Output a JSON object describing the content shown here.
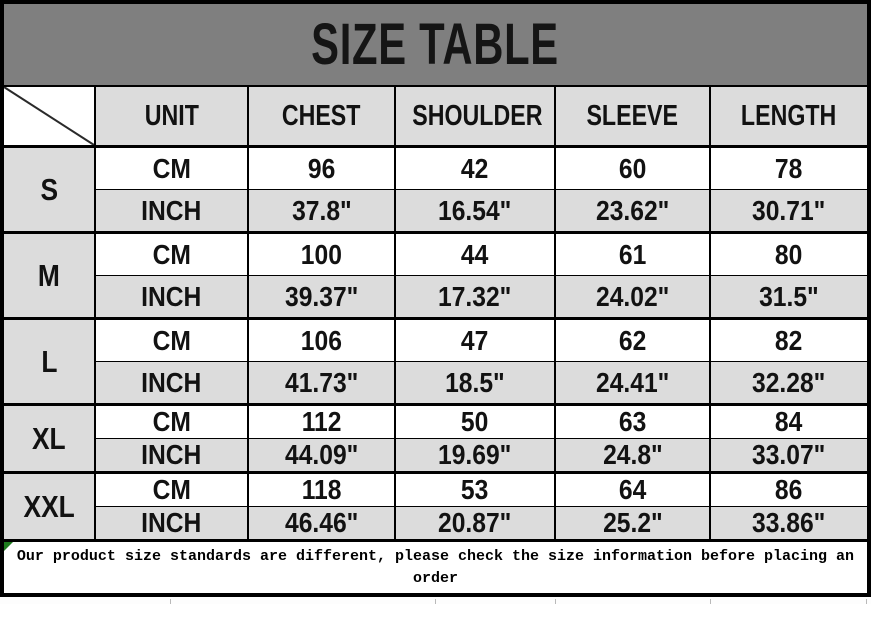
{
  "chart_data": {
    "type": "table",
    "title": "SIZE TABLE",
    "columns": [
      "UNIT",
      "CHEST",
      "SHOULDER",
      "SLEEVE",
      "LENGTH"
    ],
    "unit_labels": [
      "CM",
      "INCH"
    ],
    "rows": [
      {
        "size": "S",
        "cm": [
          "96",
          "42",
          "60",
          "78"
        ],
        "inch": [
          "37.8\"",
          "16.54\"",
          "23.62\"",
          "30.71\""
        ]
      },
      {
        "size": "M",
        "cm": [
          "100",
          "44",
          "61",
          "80"
        ],
        "inch": [
          "39.37\"",
          "17.32\"",
          "24.02\"",
          "31.5\""
        ]
      },
      {
        "size": "L",
        "cm": [
          "106",
          "47",
          "62",
          "82"
        ],
        "inch": [
          "41.73\"",
          "18.5\"",
          "24.41\"",
          "32.28\""
        ]
      },
      {
        "size": "XL",
        "cm": [
          "112",
          "50",
          "63",
          "84"
        ],
        "inch": [
          "44.09\"",
          "19.69\"",
          "24.8\"",
          "33.07\""
        ]
      },
      {
        "size": "XXL",
        "cm": [
          "118",
          "53",
          "64",
          "86"
        ],
        "inch": [
          "46.46\"",
          "20.87\"",
          "25.2\"",
          "33.86\""
        ]
      }
    ],
    "note": "Our product size standards are different, please check the size information before placing an order",
    "colors": {
      "title_bg": "#7f7f7f",
      "shaded_bg": "#dcdcdc",
      "border": "#000000",
      "comment_marker_green": "#1e7b1e"
    }
  }
}
